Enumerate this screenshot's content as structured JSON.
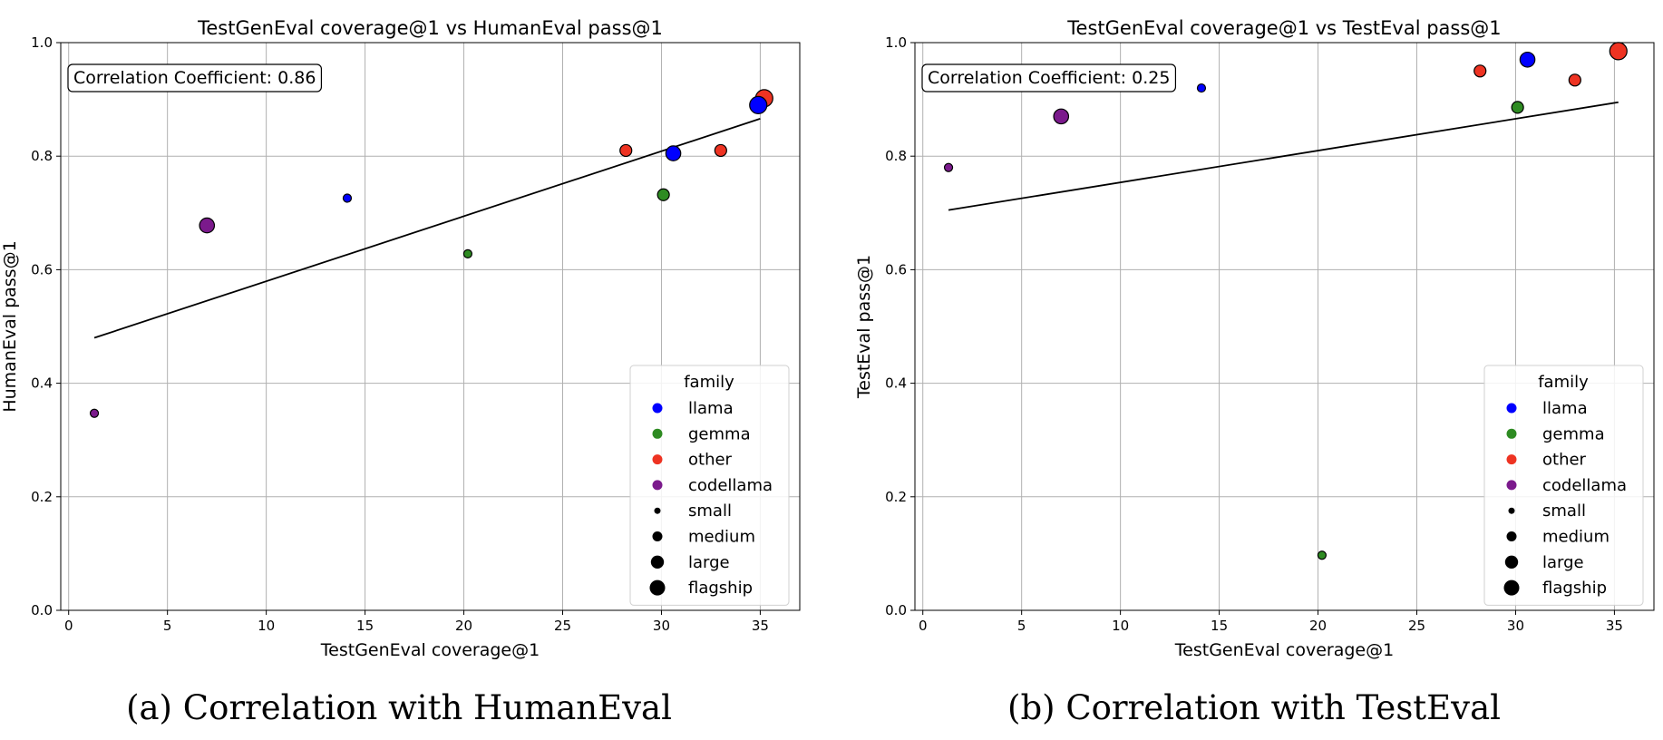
{
  "chart_data": [
    {
      "type": "scatter",
      "title": "TestGenEval coverage@1 vs HumanEval pass@1",
      "xlabel": "TestGenEval coverage@1",
      "ylabel": "HumanEval pass@1",
      "xlim": [
        -0.4,
        37.0
      ],
      "ylim": [
        0.0,
        1.0
      ],
      "xticks": [
        "0",
        "5",
        "10",
        "15",
        "20",
        "25",
        "30",
        "35"
      ],
      "yticks": [
        "0.0",
        "0.2",
        "0.4",
        "0.6",
        "0.8",
        "1.0"
      ],
      "grid": true,
      "annotation": "Correlation Coefficient: 0.86",
      "trendline": {
        "x": [
          1.3,
          35.0
        ],
        "y": [
          0.48,
          0.866
        ]
      },
      "points": [
        {
          "x": 1.3,
          "y": 0.347,
          "family": "codellama",
          "size": "small"
        },
        {
          "x": 7.0,
          "y": 0.678,
          "family": "codellama",
          "size": "large"
        },
        {
          "x": 14.1,
          "y": 0.726,
          "family": "llama",
          "size": "small"
        },
        {
          "x": 20.2,
          "y": 0.628,
          "family": "gemma",
          "size": "small"
        },
        {
          "x": 28.2,
          "y": 0.81,
          "family": "other",
          "size": "medium"
        },
        {
          "x": 30.1,
          "y": 0.732,
          "family": "gemma",
          "size": "medium"
        },
        {
          "x": 30.6,
          "y": 0.805,
          "family": "llama",
          "size": "large"
        },
        {
          "x": 33.0,
          "y": 0.81,
          "family": "other",
          "size": "medium"
        },
        {
          "x": 35.2,
          "y": 0.902,
          "family": "other",
          "size": "flagship"
        },
        {
          "x": 34.9,
          "y": 0.89,
          "family": "llama",
          "size": "flagship"
        }
      ],
      "legend": {
        "title": "family",
        "placement": "lower-right",
        "entries": [
          {
            "label": "llama",
            "color": "#0000ff",
            "size": "medium"
          },
          {
            "label": "gemma",
            "color": "#2e8b22",
            "size": "medium"
          },
          {
            "label": "other",
            "color": "#ee3322",
            "size": "medium"
          },
          {
            "label": "codellama",
            "color": "#7b1a8c",
            "size": "medium"
          },
          {
            "label": "small",
            "color": "#000000",
            "size": "small"
          },
          {
            "label": "medium",
            "color": "#000000",
            "size": "medium"
          },
          {
            "label": "large",
            "color": "#000000",
            "size": "large"
          },
          {
            "label": "flagship",
            "color": "#000000",
            "size": "flagship"
          }
        ]
      },
      "caption": "(a) Correlation with HumanEval"
    },
    {
      "type": "scatter",
      "title": "TestGenEval coverage@1 vs TestEval pass@1",
      "xlabel": "TestGenEval coverage@1",
      "ylabel": "TestEval pass@1",
      "xlim": [
        -0.4,
        37.0
      ],
      "ylim": [
        0.0,
        1.0
      ],
      "xticks": [
        "0",
        "5",
        "10",
        "15",
        "20",
        "25",
        "30",
        "35"
      ],
      "yticks": [
        "0.0",
        "0.2",
        "0.4",
        "0.6",
        "0.8",
        "1.0"
      ],
      "grid": true,
      "annotation": "Correlation Coefficient: 0.25",
      "trendline": {
        "x": [
          1.3,
          35.2
        ],
        "y": [
          0.705,
          0.895
        ]
      },
      "points": [
        {
          "x": 1.3,
          "y": 0.78,
          "family": "codellama",
          "size": "small"
        },
        {
          "x": 7.0,
          "y": 0.87,
          "family": "codellama",
          "size": "large"
        },
        {
          "x": 14.1,
          "y": 0.92,
          "family": "llama",
          "size": "small"
        },
        {
          "x": 20.2,
          "y": 0.097,
          "family": "gemma",
          "size": "small"
        },
        {
          "x": 28.2,
          "y": 0.95,
          "family": "other",
          "size": "medium"
        },
        {
          "x": 30.1,
          "y": 0.886,
          "family": "gemma",
          "size": "medium"
        },
        {
          "x": 30.6,
          "y": 0.97,
          "family": "llama",
          "size": "large"
        },
        {
          "x": 33.0,
          "y": 0.934,
          "family": "other",
          "size": "medium"
        },
        {
          "x": 35.2,
          "y": 0.985,
          "family": "other",
          "size": "flagship"
        }
      ],
      "legend": {
        "title": "family",
        "placement": "lower-right",
        "entries": [
          {
            "label": "llama",
            "color": "#0000ff",
            "size": "medium"
          },
          {
            "label": "gemma",
            "color": "#2e8b22",
            "size": "medium"
          },
          {
            "label": "other",
            "color": "#ee3322",
            "size": "medium"
          },
          {
            "label": "codellama",
            "color": "#7b1a8c",
            "size": "medium"
          },
          {
            "label": "small",
            "color": "#000000",
            "size": "small"
          },
          {
            "label": "medium",
            "color": "#000000",
            "size": "medium"
          },
          {
            "label": "large",
            "color": "#000000",
            "size": "large"
          },
          {
            "label": "flagship",
            "color": "#000000",
            "size": "flagship"
          }
        ]
      },
      "caption": "(b) Correlation with TestEval"
    }
  ],
  "colors": {
    "llama": "#0000ff",
    "gemma": "#2e8b22",
    "other": "#ee3322",
    "codellama": "#7b1a8c"
  }
}
